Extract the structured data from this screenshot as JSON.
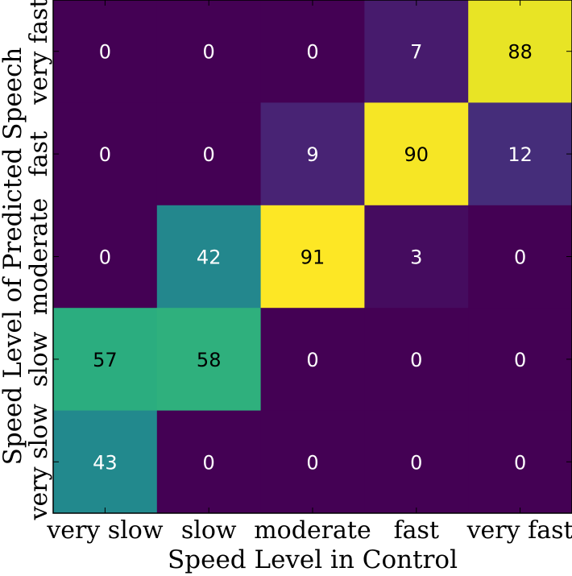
{
  "chart_data": {
    "type": "heatmap",
    "title": "",
    "xlabel": "Speed Level in Control",
    "ylabel": "Speed Level of Predicted Speech",
    "x_categories": [
      "very slow",
      "slow",
      "moderate",
      "fast",
      "very fast"
    ],
    "y_categories": [
      "very slow",
      "slow",
      "moderate",
      "fast",
      "very fast"
    ],
    "rows_top_to_bottom": [
      "very fast",
      "fast",
      "moderate",
      "slow",
      "very slow"
    ],
    "values": [
      [
        0,
        0,
        0,
        7,
        88
      ],
      [
        0,
        0,
        9,
        90,
        12
      ],
      [
        0,
        42,
        91,
        3,
        0
      ],
      [
        57,
        58,
        0,
        0,
        0
      ],
      [
        43,
        0,
        0,
        0,
        0
      ]
    ],
    "value_range": [
      0,
      91
    ],
    "colormap": "viridis",
    "grid": false,
    "colorbar": false
  }
}
